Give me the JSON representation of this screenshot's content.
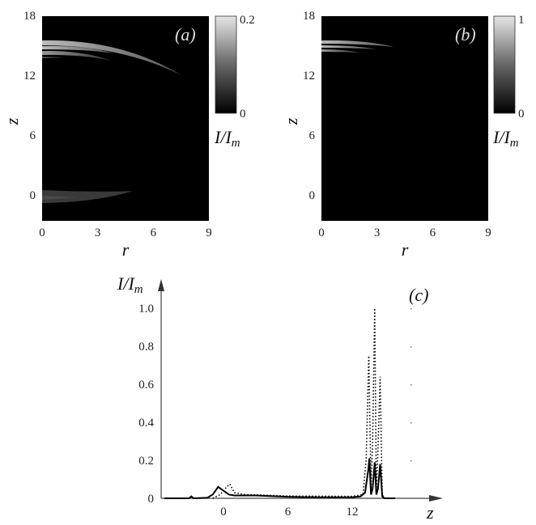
{
  "chart_data": [
    {
      "type": "heatmap",
      "panel_label": "(a)",
      "xlabel": "r",
      "ylabel": "z",
      "xticks": [
        "0",
        "3",
        "6",
        "9"
      ],
      "yticks": [
        "18",
        "12",
        "6",
        "0"
      ],
      "xlim": [
        0,
        9
      ],
      "ylim": [
        -2.6,
        18
      ],
      "colorbar": {
        "label": "I/Im",
        "label_main": "I/I",
        "label_sub": "m",
        "min_label": "0",
        "max_label": "0.2",
        "range": [
          0,
          0.2
        ]
      }
    },
    {
      "type": "heatmap",
      "panel_label": "(b)",
      "xlabel": "r",
      "ylabel": "z",
      "xticks": [
        "0",
        "3",
        "6",
        "9"
      ],
      "yticks": [
        "18",
        "12",
        "6",
        "0"
      ],
      "xlim": [
        0,
        9
      ],
      "ylim": [
        -2.6,
        18
      ],
      "colorbar": {
        "label": "I/Im",
        "label_main": "I/I",
        "label_sub": "m",
        "min_label": "0",
        "max_label": "1",
        "range": [
          0,
          1
        ]
      }
    },
    {
      "type": "line",
      "panel_label": "(c)",
      "xlabel": "z",
      "ylabel": "I/Im",
      "ylabel_main": "I/I",
      "ylabel_sub": "m",
      "xticks": [
        0,
        6,
        12
      ],
      "yticks": [
        0,
        0.2,
        0.4,
        0.6,
        0.8,
        1.0
      ],
      "ytick_labels": [
        "0",
        "0.2",
        "0.4",
        "0.6",
        "0.8",
        "1.0"
      ],
      "xlim": [
        -5.8,
        20
      ],
      "ylim": [
        0,
        1.1
      ],
      "series": [
        {
          "name": "solid",
          "style": "solid",
          "x": [
            -5.5,
            -3.2,
            -3,
            -2.8,
            -1.5,
            -1,
            -0.5,
            0,
            0.5,
            1,
            3,
            6,
            9,
            12,
            12.8,
            13.2,
            13.5,
            13.6,
            13.75,
            13.9,
            14.1,
            14.25,
            14.4,
            14.6,
            14.8,
            15,
            16
          ],
          "y": [
            0,
            0,
            0.01,
            0,
            0.003,
            0.02,
            0.06,
            0.04,
            0.02,
            0.015,
            0.015,
            0.008,
            0.005,
            0.005,
            0.01,
            0.03,
            0.15,
            0.21,
            0.02,
            0.05,
            0.19,
            0.02,
            0.05,
            0.18,
            0.01,
            0,
            0
          ]
        },
        {
          "name": "dotted",
          "style": "dotted",
          "x": [
            -1,
            -0.3,
            0.3,
            0.6,
            1,
            2,
            6,
            12,
            13,
            13.3,
            13.55,
            13.75,
            13.9,
            14.1,
            14.25,
            14.4,
            14.6,
            14.8,
            15
          ],
          "y": [
            0,
            0.02,
            0.06,
            0.075,
            0.03,
            0.02,
            0.012,
            0.01,
            0.02,
            0.2,
            0.75,
            0.05,
            0.3,
            1.0,
            0.05,
            0.25,
            0.64,
            0.02,
            0
          ]
        }
      ]
    }
  ]
}
